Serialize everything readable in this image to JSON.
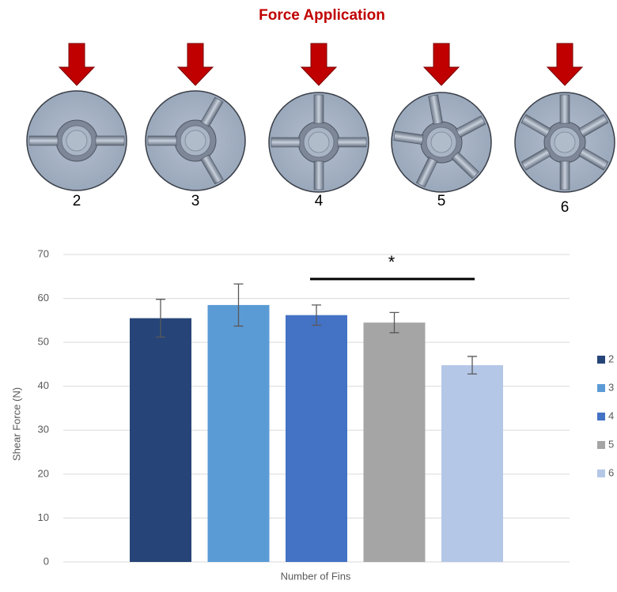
{
  "diagram": {
    "title": "Force Application",
    "labels": [
      "2",
      "3",
      "4",
      "5",
      "6"
    ]
  },
  "chart_data": {
    "type": "bar",
    "x_label": "Number of Fins",
    "y_label": "Shear Force (N)",
    "series": [
      {
        "name": "2",
        "color": "#264478",
        "values": [
          55.5
        ],
        "errors": [
          4.3
        ]
      },
      {
        "name": "3",
        "color": "#5b9bd5",
        "values": [
          58.5
        ],
        "errors": [
          4.8
        ]
      },
      {
        "name": "4",
        "color": "#4472c4",
        "values": [
          56.2
        ],
        "errors": [
          2.3
        ]
      },
      {
        "name": "5",
        "color": "#a5a5a5",
        "values": [
          54.5
        ],
        "errors": [
          2.3
        ]
      },
      {
        "name": "6",
        "color": "#b4c7e7",
        "values": [
          44.8
        ],
        "errors": [
          2.0
        ]
      }
    ],
    "ylim": [
      0,
      70
    ],
    "yticks": [
      0,
      10,
      20,
      30,
      40,
      50,
      60,
      70
    ],
    "grid": true,
    "annotation": "*",
    "legend": "right"
  }
}
